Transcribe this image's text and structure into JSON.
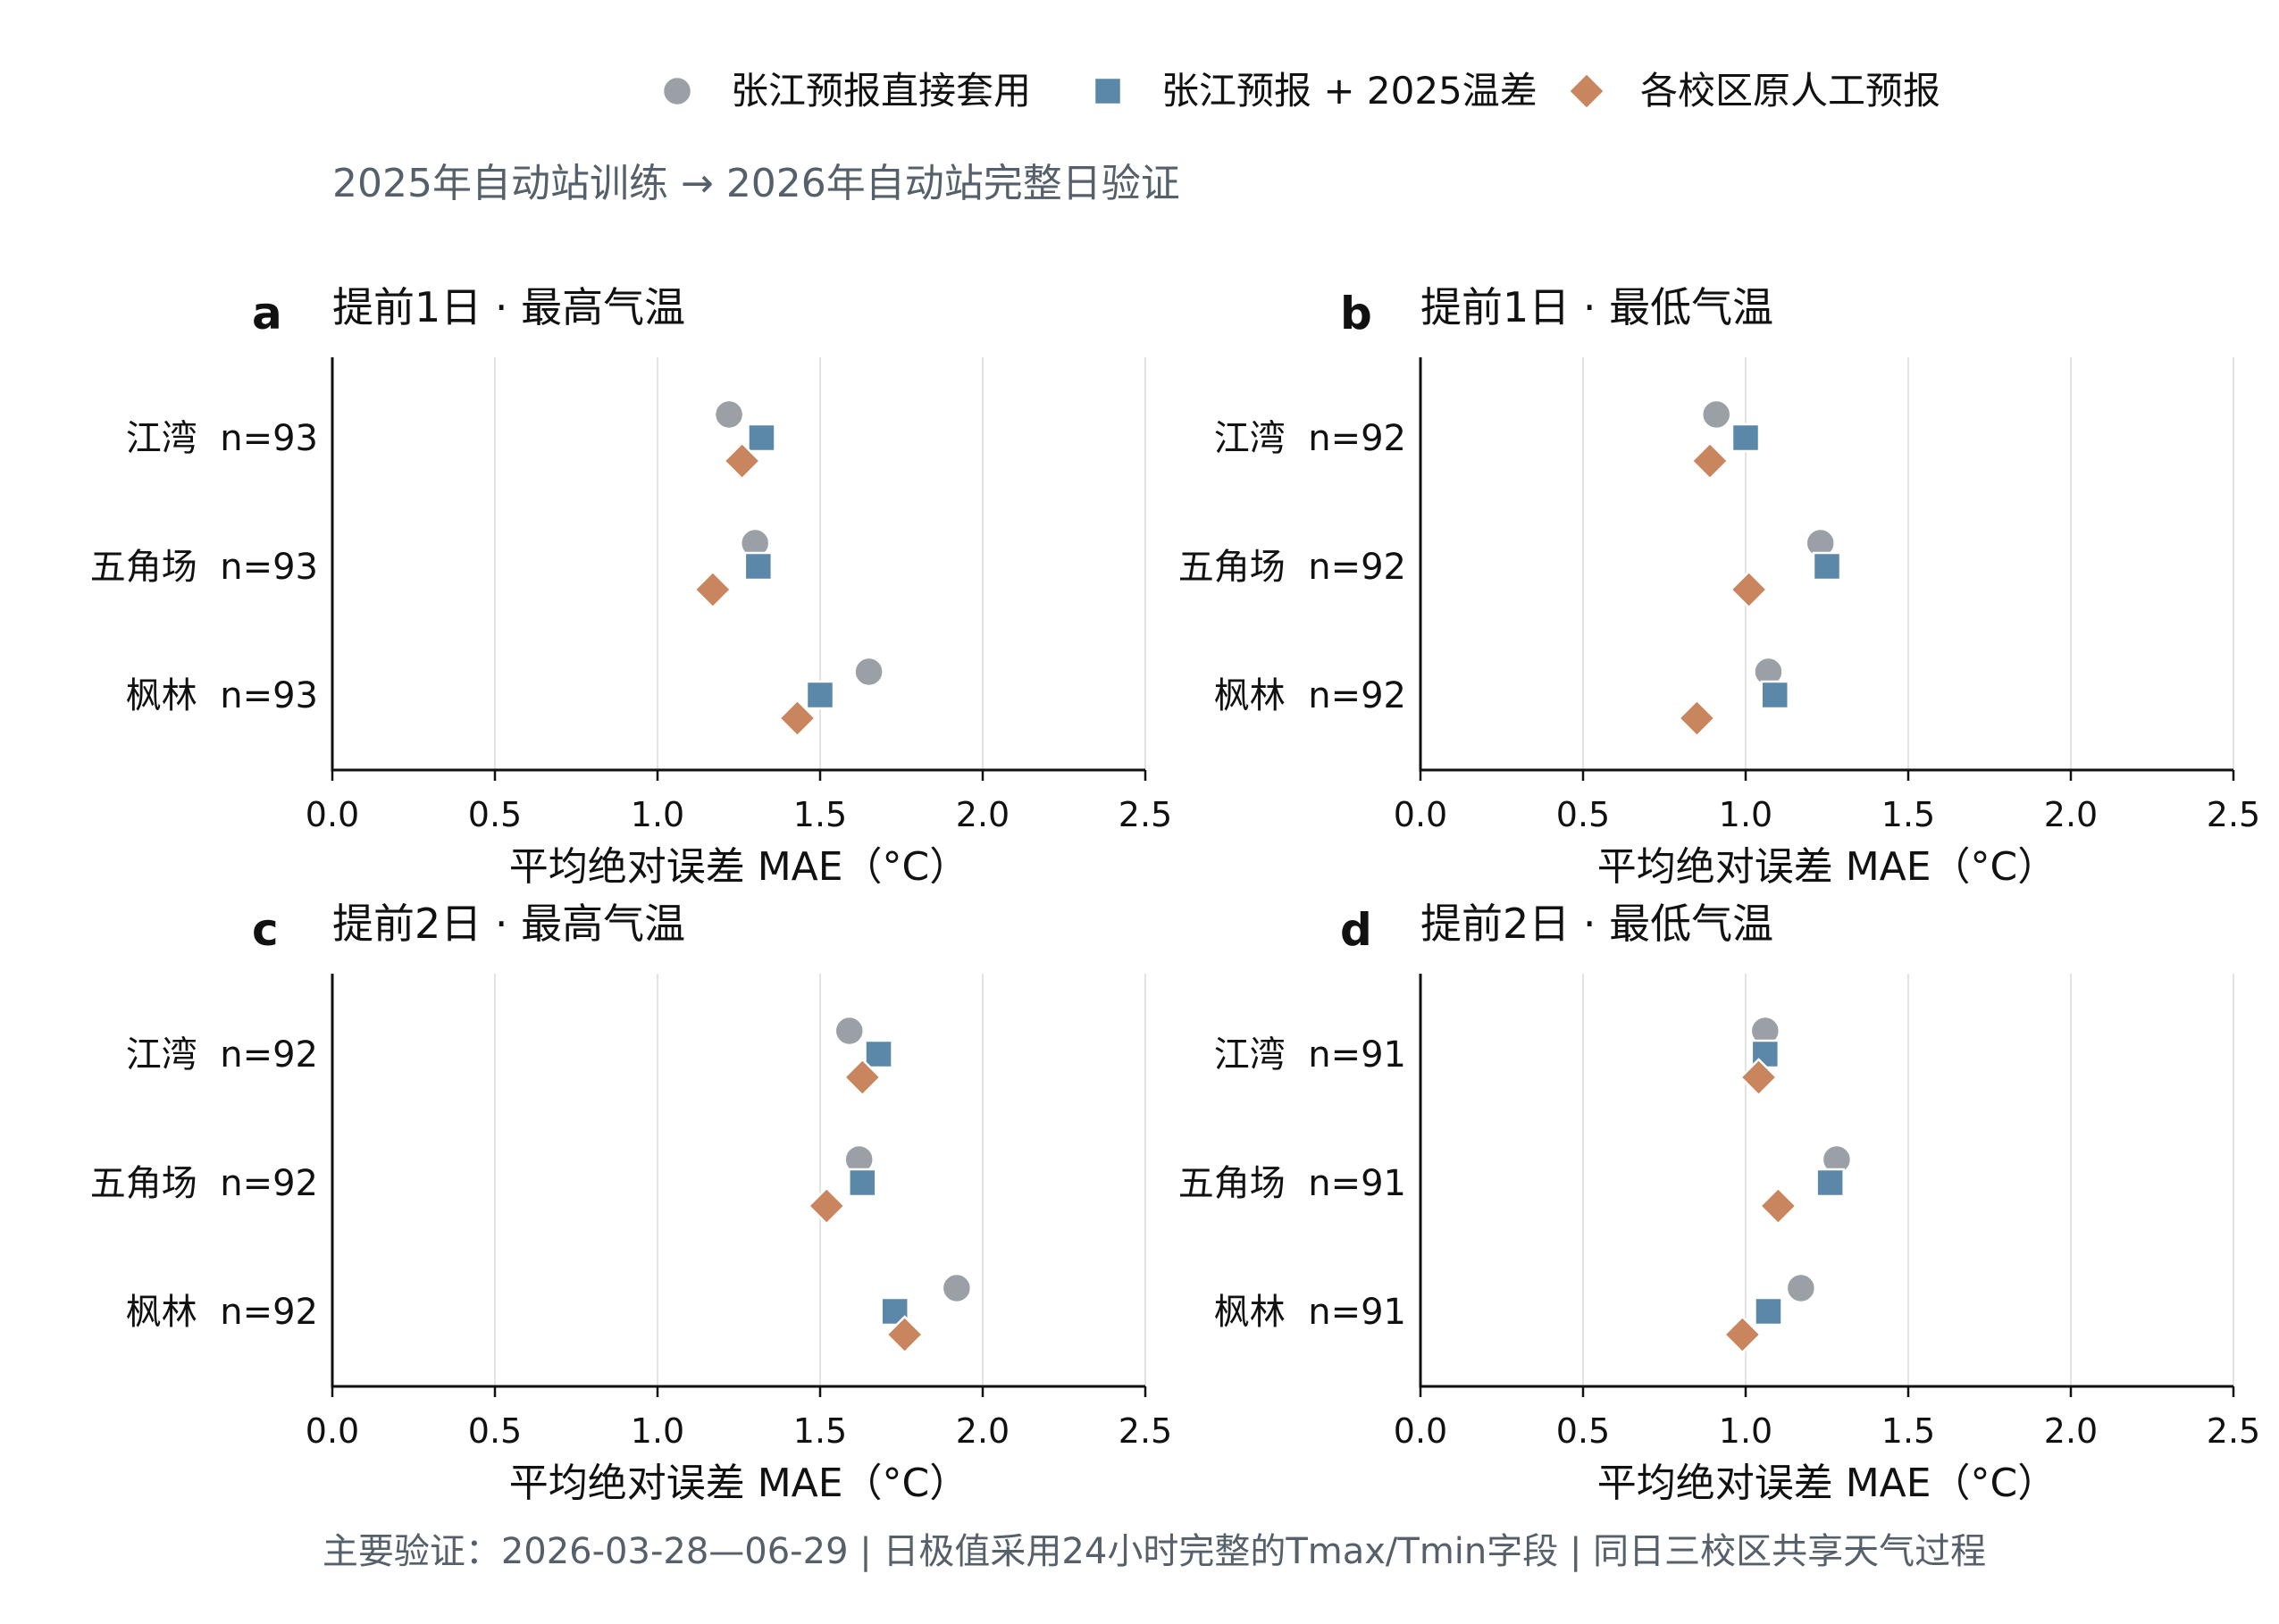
{
  "legend": [
    {
      "label": "张江预报直接套用",
      "marker": "circle",
      "color": "#9aa0a6"
    },
    {
      "label": "张江预报 + 2025温差",
      "marker": "square",
      "color": "#5b87a8"
    },
    {
      "label": "各校区原人工预报",
      "marker": "diamond",
      "color": "#c8855e"
    }
  ],
  "subtitle": "2025年自动站训练 → 2026年自动站完整日验证",
  "footer": "主要验证：2026-03-28—06-29 | 日极值采用24小时完整的Tmax/Tmin字段 | 同日三校区共享天气过程",
  "chart_data": [
    {
      "type": "scatter",
      "panel_letter": "a",
      "title": "提前1日 · 最高气温",
      "xlabel": "平均绝对误差 MAE（°C）",
      "xlim": [
        0,
        2.5
      ],
      "xticks": [
        "0.0",
        "0.5",
        "1.0",
        "1.5",
        "2.0",
        "2.5"
      ],
      "grid": "vertical",
      "categories": [
        "江湾  n=93",
        "五角场  n=93",
        "枫林  n=93"
      ],
      "series": [
        {
          "name": "张江预报直接套用",
          "values": [
            1.22,
            1.3,
            1.65
          ]
        },
        {
          "name": "张江预报 + 2025温差",
          "values": [
            1.32,
            1.31,
            1.5
          ]
        },
        {
          "name": "各校区原人工预报",
          "values": [
            1.26,
            1.17,
            1.43
          ]
        }
      ]
    },
    {
      "type": "scatter",
      "panel_letter": "b",
      "title": "提前1日 · 最低气温",
      "xlabel": "平均绝对误差 MAE（°C）",
      "xlim": [
        0,
        2.5
      ],
      "xticks": [
        "0.0",
        "0.5",
        "1.0",
        "1.5",
        "2.0",
        "2.5"
      ],
      "grid": "vertical",
      "categories": [
        "江湾  n=92",
        "五角场  n=92",
        "枫林  n=92"
      ],
      "series": [
        {
          "name": "张江预报直接套用",
          "values": [
            0.91,
            1.23,
            1.07
          ]
        },
        {
          "name": "张江预报 + 2025温差",
          "values": [
            1.0,
            1.25,
            1.09
          ]
        },
        {
          "name": "各校区原人工预报",
          "values": [
            0.89,
            1.01,
            0.85
          ]
        }
      ]
    },
    {
      "type": "scatter",
      "panel_letter": "c",
      "title": "提前2日 · 最高气温",
      "xlabel": "平均绝对误差 MAE（°C）",
      "xlim": [
        0,
        2.5
      ],
      "xticks": [
        "0.0",
        "0.5",
        "1.0",
        "1.5",
        "2.0",
        "2.5"
      ],
      "grid": "vertical",
      "categories": [
        "江湾  n=92",
        "五角场  n=92",
        "枫林  n=92"
      ],
      "series": [
        {
          "name": "张江预报直接套用",
          "values": [
            1.59,
            1.62,
            1.92
          ]
        },
        {
          "name": "张江预报 + 2025温差",
          "values": [
            1.68,
            1.63,
            1.73
          ]
        },
        {
          "name": "各校区原人工预报",
          "values": [
            1.63,
            1.52,
            1.76
          ]
        }
      ]
    },
    {
      "type": "scatter",
      "panel_letter": "d",
      "title": "提前2日 · 最低气温",
      "xlabel": "平均绝对误差 MAE（°C）",
      "xlim": [
        0,
        2.5
      ],
      "xticks": [
        "0.0",
        "0.5",
        "1.0",
        "1.5",
        "2.0",
        "2.5"
      ],
      "grid": "vertical",
      "categories": [
        "江湾  n=91",
        "五角场  n=91",
        "枫林  n=91"
      ],
      "series": [
        {
          "name": "张江预报直接套用",
          "values": [
            1.06,
            1.28,
            1.17
          ]
        },
        {
          "name": "张江预报 + 2025温差",
          "values": [
            1.06,
            1.26,
            1.07
          ]
        },
        {
          "name": "各校区原人工预报",
          "values": [
            1.04,
            1.1,
            0.99
          ]
        }
      ]
    }
  ]
}
